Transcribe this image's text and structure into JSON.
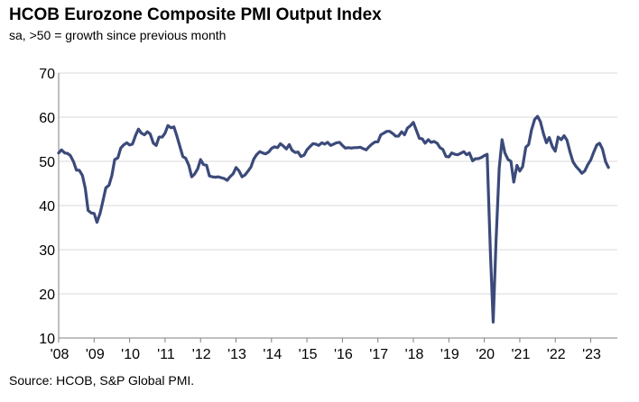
{
  "chart_data": {
    "type": "line",
    "title": "HCOB Eurozone Composite PMI Output Index",
    "subtitle": "sa, >50 = growth since previous month",
    "source": "Source: HCOB, S&P Global PMI.",
    "xlabel": "",
    "ylabel": "",
    "ylim": [
      10,
      70
    ],
    "yticks": [
      10,
      20,
      30,
      40,
      50,
      60,
      70
    ],
    "xlim": [
      2008,
      2023.75
    ],
    "xticks": [
      {
        "value": 2008,
        "label": "'08"
      },
      {
        "value": 2009,
        "label": "'09"
      },
      {
        "value": 2010,
        "label": "'10"
      },
      {
        "value": 2011,
        "label": "'11"
      },
      {
        "value": 2012,
        "label": "'12"
      },
      {
        "value": 2013,
        "label": "'13"
      },
      {
        "value": 2014,
        "label": "'14"
      },
      {
        "value": 2015,
        "label": "'15"
      },
      {
        "value": 2016,
        "label": "'16"
      },
      {
        "value": 2017,
        "label": "'17"
      },
      {
        "value": 2018,
        "label": "'18"
      },
      {
        "value": 2019,
        "label": "'19"
      },
      {
        "value": 2020,
        "label": "'20"
      },
      {
        "value": 2021,
        "label": "'21"
      },
      {
        "value": 2022,
        "label": "'22"
      },
      {
        "value": 2023,
        "label": "'23"
      }
    ],
    "grid": "horizontal",
    "series": [
      {
        "name": "Composite PMI Output Index",
        "color": "#3b4a7a",
        "points": [
          [
            2008.0,
            51.9
          ],
          [
            2008.08,
            52.6
          ],
          [
            2008.17,
            51.9
          ],
          [
            2008.25,
            51.8
          ],
          [
            2008.33,
            51.3
          ],
          [
            2008.42,
            49.9
          ],
          [
            2008.5,
            48.0
          ],
          [
            2008.58,
            48.0
          ],
          [
            2008.67,
            46.8
          ],
          [
            2008.75,
            43.9
          ],
          [
            2008.83,
            38.9
          ],
          [
            2008.92,
            38.3
          ],
          [
            2009.0,
            38.2
          ],
          [
            2009.08,
            36.2
          ],
          [
            2009.17,
            38.3
          ],
          [
            2009.25,
            41.1
          ],
          [
            2009.33,
            44.0
          ],
          [
            2009.42,
            44.6
          ],
          [
            2009.5,
            46.8
          ],
          [
            2009.58,
            50.4
          ],
          [
            2009.67,
            50.8
          ],
          [
            2009.75,
            53.0
          ],
          [
            2009.83,
            53.7
          ],
          [
            2009.92,
            54.2
          ],
          [
            2010.0,
            53.7
          ],
          [
            2010.08,
            53.9
          ],
          [
            2010.17,
            55.9
          ],
          [
            2010.25,
            57.3
          ],
          [
            2010.33,
            56.4
          ],
          [
            2010.42,
            56.0
          ],
          [
            2010.5,
            56.7
          ],
          [
            2010.58,
            56.2
          ],
          [
            2010.67,
            54.1
          ],
          [
            2010.75,
            53.6
          ],
          [
            2010.83,
            55.5
          ],
          [
            2010.92,
            55.5
          ],
          [
            2011.0,
            56.4
          ],
          [
            2011.08,
            58.1
          ],
          [
            2011.17,
            57.6
          ],
          [
            2011.25,
            57.8
          ],
          [
            2011.33,
            55.8
          ],
          [
            2011.42,
            53.3
          ],
          [
            2011.5,
            51.1
          ],
          [
            2011.58,
            50.7
          ],
          [
            2011.67,
            49.1
          ],
          [
            2011.75,
            46.5
          ],
          [
            2011.83,
            47.1
          ],
          [
            2011.92,
            48.3
          ],
          [
            2012.0,
            50.4
          ],
          [
            2012.08,
            49.3
          ],
          [
            2012.17,
            49.1
          ],
          [
            2012.25,
            46.7
          ],
          [
            2012.33,
            46.5
          ],
          [
            2012.42,
            46.4
          ],
          [
            2012.5,
            46.5
          ],
          [
            2012.58,
            46.3
          ],
          [
            2012.67,
            46.1
          ],
          [
            2012.75,
            45.7
          ],
          [
            2012.83,
            46.5
          ],
          [
            2012.92,
            47.2
          ],
          [
            2013.0,
            48.6
          ],
          [
            2013.08,
            47.9
          ],
          [
            2013.17,
            46.5
          ],
          [
            2013.25,
            46.9
          ],
          [
            2013.33,
            47.7
          ],
          [
            2013.42,
            48.7
          ],
          [
            2013.5,
            50.5
          ],
          [
            2013.58,
            51.5
          ],
          [
            2013.67,
            52.2
          ],
          [
            2013.75,
            51.9
          ],
          [
            2013.83,
            51.7
          ],
          [
            2013.92,
            52.1
          ],
          [
            2014.0,
            52.9
          ],
          [
            2014.08,
            53.3
          ],
          [
            2014.17,
            53.1
          ],
          [
            2014.25,
            54.0
          ],
          [
            2014.33,
            53.5
          ],
          [
            2014.42,
            52.8
          ],
          [
            2014.5,
            53.8
          ],
          [
            2014.58,
            52.5
          ],
          [
            2014.67,
            52.0
          ],
          [
            2014.75,
            52.1
          ],
          [
            2014.83,
            51.1
          ],
          [
            2014.92,
            51.4
          ],
          [
            2015.0,
            52.6
          ],
          [
            2015.08,
            53.3
          ],
          [
            2015.17,
            54.0
          ],
          [
            2015.25,
            53.9
          ],
          [
            2015.33,
            53.6
          ],
          [
            2015.42,
            54.2
          ],
          [
            2015.5,
            53.9
          ],
          [
            2015.58,
            54.3
          ],
          [
            2015.67,
            53.6
          ],
          [
            2015.75,
            53.9
          ],
          [
            2015.83,
            54.2
          ],
          [
            2015.92,
            54.3
          ],
          [
            2016.0,
            53.6
          ],
          [
            2016.08,
            53.0
          ],
          [
            2016.17,
            53.1
          ],
          [
            2016.25,
            53.0
          ],
          [
            2016.33,
            53.1
          ],
          [
            2016.42,
            53.1
          ],
          [
            2016.5,
            53.2
          ],
          [
            2016.58,
            52.9
          ],
          [
            2016.67,
            52.6
          ],
          [
            2016.75,
            53.3
          ],
          [
            2016.83,
            53.9
          ],
          [
            2016.92,
            54.4
          ],
          [
            2017.0,
            54.4
          ],
          [
            2017.08,
            56.0
          ],
          [
            2017.17,
            56.4
          ],
          [
            2017.25,
            56.8
          ],
          [
            2017.33,
            56.8
          ],
          [
            2017.42,
            56.3
          ],
          [
            2017.5,
            55.7
          ],
          [
            2017.58,
            55.7
          ],
          [
            2017.67,
            56.7
          ],
          [
            2017.75,
            56.0
          ],
          [
            2017.83,
            57.5
          ],
          [
            2017.92,
            58.1
          ],
          [
            2018.0,
            58.8
          ],
          [
            2018.08,
            57.1
          ],
          [
            2018.17,
            55.2
          ],
          [
            2018.25,
            55.1
          ],
          [
            2018.33,
            54.1
          ],
          [
            2018.42,
            54.9
          ],
          [
            2018.5,
            54.3
          ],
          [
            2018.58,
            54.5
          ],
          [
            2018.67,
            54.1
          ],
          [
            2018.75,
            53.1
          ],
          [
            2018.83,
            52.7
          ],
          [
            2018.92,
            51.1
          ],
          [
            2019.0,
            51.0
          ],
          [
            2019.08,
            51.9
          ],
          [
            2019.17,
            51.6
          ],
          [
            2019.25,
            51.5
          ],
          [
            2019.33,
            51.8
          ],
          [
            2019.42,
            52.2
          ],
          [
            2019.5,
            51.5
          ],
          [
            2019.58,
            51.9
          ],
          [
            2019.67,
            50.1
          ],
          [
            2019.75,
            50.6
          ],
          [
            2019.83,
            50.6
          ],
          [
            2019.92,
            50.9
          ],
          [
            2020.0,
            51.3
          ],
          [
            2020.08,
            51.6
          ],
          [
            2020.17,
            29.7
          ],
          [
            2020.25,
            13.6
          ],
          [
            2020.33,
            31.9
          ],
          [
            2020.42,
            48.5
          ],
          [
            2020.5,
            54.9
          ],
          [
            2020.58,
            51.9
          ],
          [
            2020.67,
            50.4
          ],
          [
            2020.75,
            50.0
          ],
          [
            2020.83,
            45.3
          ],
          [
            2020.92,
            49.1
          ],
          [
            2021.0,
            47.8
          ],
          [
            2021.08,
            48.8
          ],
          [
            2021.17,
            53.2
          ],
          [
            2021.25,
            53.8
          ],
          [
            2021.33,
            57.1
          ],
          [
            2021.42,
            59.5
          ],
          [
            2021.5,
            60.2
          ],
          [
            2021.58,
            59.0
          ],
          [
            2021.67,
            56.2
          ],
          [
            2021.75,
            54.2
          ],
          [
            2021.83,
            55.4
          ],
          [
            2021.92,
            53.3
          ],
          [
            2022.0,
            52.3
          ],
          [
            2022.08,
            55.5
          ],
          [
            2022.17,
            54.9
          ],
          [
            2022.25,
            55.8
          ],
          [
            2022.33,
            54.8
          ],
          [
            2022.42,
            52.0
          ],
          [
            2022.5,
            49.9
          ],
          [
            2022.58,
            48.9
          ],
          [
            2022.67,
            48.1
          ],
          [
            2022.75,
            47.3
          ],
          [
            2022.83,
            47.8
          ],
          [
            2022.92,
            49.3
          ],
          [
            2023.0,
            50.3
          ],
          [
            2023.08,
            52.0
          ],
          [
            2023.17,
            53.7
          ],
          [
            2023.25,
            54.1
          ],
          [
            2023.33,
            52.8
          ],
          [
            2023.42,
            49.9
          ],
          [
            2023.5,
            48.6
          ]
        ]
      }
    ]
  }
}
